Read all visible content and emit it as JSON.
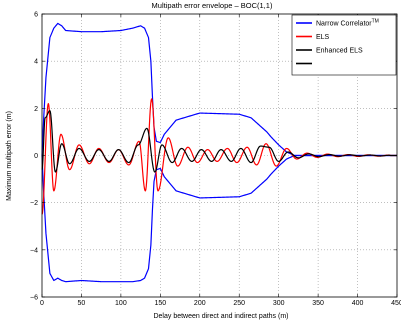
{
  "chart_data": {
    "type": "line",
    "title": "Multipath error envelope – BOC(1,1)",
    "xlabel": "Delay between direct and indirect paths (m)",
    "ylabel": "Maximum multipath error (m)",
    "xlim": [
      0,
      450
    ],
    "ylim": [
      -6,
      6
    ],
    "xticks": [
      "0",
      "50",
      "100",
      "150",
      "200",
      "250",
      "300",
      "350",
      "400",
      "450"
    ],
    "yticks": [
      "6",
      "4",
      "2",
      "0",
      "−2",
      "−4",
      "−6"
    ],
    "grid": true,
    "legend_position": "top-right",
    "series": [
      {
        "name": "Narrow Correlator",
        "name_superscript": "TM",
        "color": "#0000ff",
        "x": [
          0,
          2,
          5,
          10,
          15,
          20,
          25,
          30,
          50,
          75,
          100,
          115,
          125,
          130,
          135,
          138,
          140,
          142,
          145,
          150,
          155,
          170,
          200,
          250,
          265,
          275,
          285,
          290,
          300,
          310,
          320,
          450
        ],
        "upper": [
          0.0,
          1.5,
          3.3,
          5.0,
          5.4,
          5.6,
          5.5,
          5.3,
          5.25,
          5.25,
          5.3,
          5.4,
          5.5,
          5.4,
          5.0,
          4.0,
          2.5,
          1.2,
          0.6,
          0.55,
          0.9,
          1.5,
          1.8,
          1.75,
          1.6,
          1.3,
          1.0,
          0.8,
          0.45,
          0.15,
          0.0,
          0.0
        ],
        "lower": [
          0.0,
          -1.5,
          -3.3,
          -5.0,
          -5.3,
          -5.2,
          -5.3,
          -5.35,
          -5.3,
          -5.35,
          -5.35,
          -5.35,
          -5.3,
          -5.2,
          -4.8,
          -3.8,
          -2.3,
          -1.1,
          -0.6,
          -0.55,
          -0.9,
          -1.5,
          -1.8,
          -1.75,
          -1.6,
          -1.3,
          -1.0,
          -0.8,
          -0.45,
          -0.15,
          0.0,
          0.0
        ]
      },
      {
        "name": "ELS",
        "color": "#ff0000",
        "peaks_x": [
          0,
          8,
          15,
          24,
          35,
          47,
          60,
          72,
          85,
          97,
          110,
          123,
          131,
          139,
          147,
          160,
          172,
          185,
          197,
          210,
          222,
          235,
          247,
          260,
          272,
          284,
          297,
          310,
          323,
          336,
          349,
          362,
          375,
          388,
          401,
          414,
          427,
          440
        ],
        "peaks_y": [
          -2.5,
          2.2,
          -1.5,
          0.9,
          -0.6,
          0.45,
          -0.35,
          0.3,
          -0.3,
          0.25,
          -0.4,
          0.6,
          -1.5,
          2.4,
          -1.5,
          0.75,
          -0.45,
          0.35,
          -0.3,
          0.25,
          -0.25,
          0.3,
          -0.3,
          0.35,
          -0.4,
          0.5,
          -0.45,
          0.3,
          -0.15,
          0.1,
          -0.08,
          0.06,
          -0.05,
          0.04,
          -0.04,
          0.03,
          -0.03,
          0.02
        ]
      },
      {
        "name": "Enhanced ELS",
        "color": "#000000",
        "peaks_x": [
          0,
          4,
          10,
          17,
          25,
          35,
          47,
          60,
          72,
          85,
          97,
          110,
          122,
          133,
          143,
          152,
          165,
          177,
          190,
          202,
          215,
          227,
          240,
          252,
          265,
          277,
          288,
          300,
          312,
          325,
          338,
          351,
          364,
          377,
          390,
          403,
          416,
          429,
          440
        ],
        "peaks_y": [
          -0.6,
          1.6,
          1.9,
          -0.7,
          0.5,
          -0.35,
          0.3,
          -0.25,
          0.25,
          -0.25,
          0.25,
          -0.3,
          0.45,
          1.15,
          -0.7,
          0.45,
          -0.3,
          0.3,
          -0.25,
          0.25,
          -0.25,
          0.25,
          -0.25,
          0.3,
          -0.3,
          0.4,
          0.35,
          -0.25,
          0.15,
          -0.1,
          0.07,
          -0.05,
          0.04,
          -0.03,
          0.03,
          -0.02,
          0.02,
          -0.02,
          0.01
        ]
      },
      {
        "name": "",
        "color": "#000000",
        "legend_only": true
      }
    ]
  }
}
